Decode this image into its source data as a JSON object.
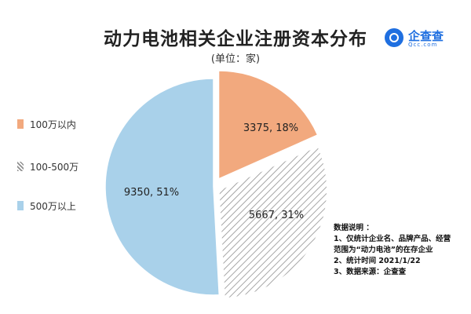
{
  "header": {
    "title": "动力电池相关企业注册资本分布",
    "unit": "(单位：家)"
  },
  "brand": {
    "name": "企查查",
    "url": "Qcc.com",
    "icon": "qcc-logo-icon",
    "color": "#1f6fe0"
  },
  "notes": {
    "heading": "数据说明 ：",
    "line1": "1、仅统计企业名、品牌产品、经营",
    "line2": "范围为“动力电池”的在存企业",
    "line3": "2、统计时间 2021/1/22",
    "line4": "3、数据来源：企查查"
  },
  "chart_data": {
    "type": "pie",
    "title": "动力电池相关企业注册资本分布",
    "subtitle": "(单位：家)",
    "legend_position": "left",
    "slices": [
      {
        "name": "100万以内",
        "value": 3375,
        "percent": 18,
        "label": "3375, 18%",
        "color": "#f2a97e",
        "pattern": "solid"
      },
      {
        "name": "100-500万",
        "value": 5667,
        "percent": 31,
        "label": "5667, 31%",
        "color": "#8f8f8f",
        "pattern": "hatch"
      },
      {
        "name": "500万以上",
        "value": 9350,
        "percent": 51,
        "label": "9350, 51%",
        "color": "#a9d1ea",
        "pattern": "solid"
      }
    ]
  }
}
